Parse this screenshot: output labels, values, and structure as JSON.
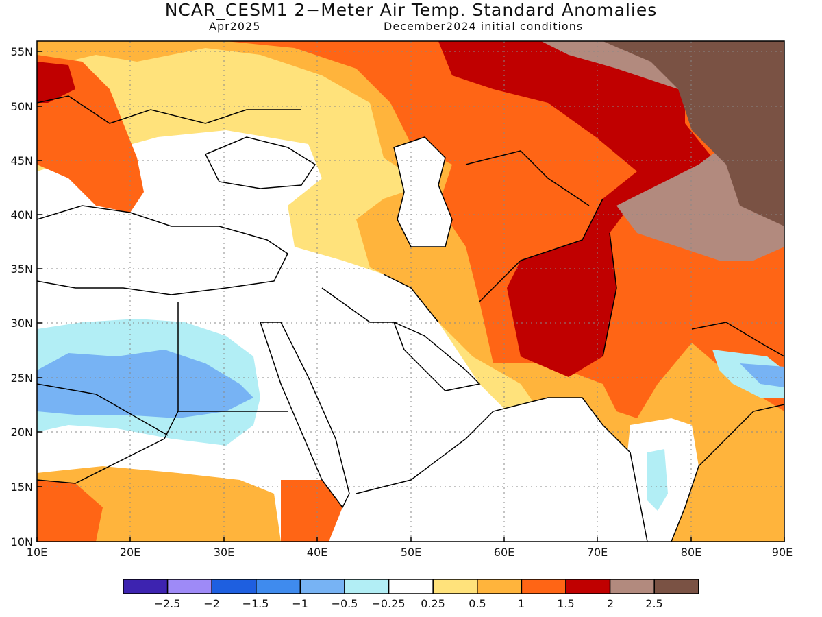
{
  "header": {
    "title": "NCAR_CESM1 2−Meter Air Temp. Standard Anomalies",
    "forecast_month": "Apr2025",
    "initial_conditions": "December2024 initial conditions"
  },
  "map": {
    "lon_range": [
      10,
      90
    ],
    "lat_range": [
      10,
      56
    ],
    "lon_ticks": [
      "10E",
      "20E",
      "30E",
      "40E",
      "50E",
      "60E",
      "70E",
      "80E",
      "90E"
    ],
    "lat_ticks": [
      "10N",
      "15N",
      "20N",
      "25N",
      "30N",
      "35N",
      "40N",
      "45N",
      "50N",
      "55N"
    ]
  },
  "legend": {
    "colors": [
      "#3d23b0",
      "#9e8af7",
      "#1e5fe0",
      "#3f8bee",
      "#77b3f4",
      "#b2eef5",
      "#ffffff",
      "#ffe27b",
      "#ffb43c",
      "#ff6515",
      "#c00000",
      "#b28a7e",
      "#7a5244"
    ],
    "labels": [
      "−2.5",
      "−2",
      "−1.5",
      "−1",
      "−0.5",
      "−0.25",
      "0.25",
      "0.5",
      "1",
      "1.5",
      "2",
      "2.5"
    ]
  }
}
